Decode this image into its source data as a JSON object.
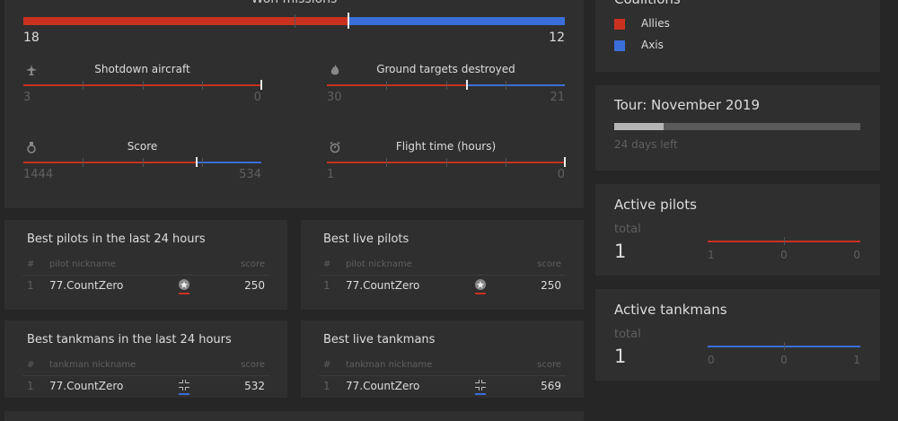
{
  "missions": {
    "title": "Won missions",
    "allies": 18,
    "axis": 12
  },
  "stats": [
    {
      "label": "Shotdown aircraft",
      "allies": 3,
      "axis": 0
    },
    {
      "label": "Ground targets destroyed",
      "allies": 30,
      "axis": 21
    },
    {
      "label": "Score",
      "allies": 1444,
      "axis": 534
    },
    {
      "label": "Flight time (hours)",
      "allies": 1,
      "axis": 0
    }
  ],
  "coalitions": {
    "title": "Coalitions",
    "items": [
      "Allies",
      "Axis"
    ]
  },
  "tour": {
    "title": "Tour: November 2019",
    "remaining": "24 days left"
  },
  "active": [
    {
      "title": "Active pilots",
      "total_label": "total",
      "total": 1,
      "values": [
        1,
        0,
        0
      ]
    },
    {
      "title": "Active tankmans",
      "total_label": "total",
      "total": 1,
      "values": [
        0,
        0,
        1
      ]
    }
  ],
  "tables": [
    {
      "title": "Best pilots in the last 24 hours",
      "columns": [
        "#",
        "pilot nickname",
        "score"
      ],
      "rows": [
        [
          1,
          "77.CountZero",
          250
        ]
      ]
    },
    {
      "title": "Best live pilots",
      "columns": [
        "#",
        "pilot nickname",
        "score"
      ],
      "rows": [
        [
          1,
          "77.CountZero",
          250
        ]
      ]
    },
    {
      "title": "Best tankmans in the last 24 hours",
      "columns": [
        "#",
        "tankman nickname",
        "score"
      ],
      "rows": [
        [
          1,
          "77.CountZero",
          532
        ]
      ]
    },
    {
      "title": "Best live tankmans",
      "columns": [
        "#",
        "tankman nickname",
        "score"
      ],
      "rows": [
        [
          1,
          "77.CountZero",
          569
        ]
      ]
    }
  ]
}
